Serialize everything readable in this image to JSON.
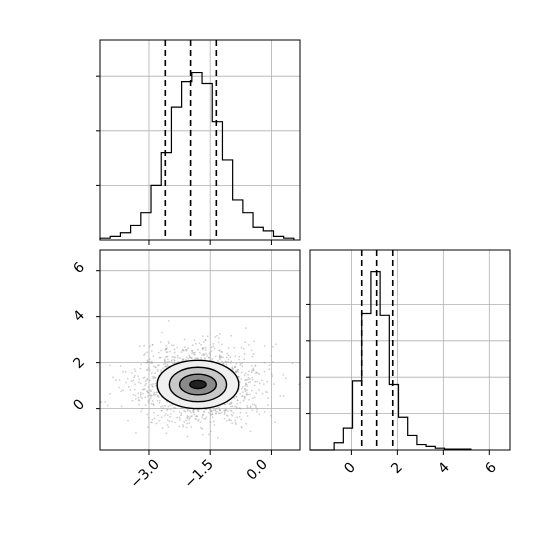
{
  "chart_data": {
    "type": "corner",
    "parameters": [
      "x",
      "y"
    ],
    "panels": [
      {
        "kind": "histogram",
        "parameter": "x",
        "x_range": [
          -4.2,
          0.7
        ],
        "y_range": [
          0,
          1.0
        ],
        "x_ticks": [
          -3.0,
          -1.5,
          0.0
        ],
        "bins": [
          {
            "lo": -4.2,
            "hi": -3.95,
            "count": 0.01
          },
          {
            "lo": -3.95,
            "hi": -3.7,
            "count": 0.02
          },
          {
            "lo": -3.7,
            "hi": -3.45,
            "count": 0.04
          },
          {
            "lo": -3.45,
            "hi": -3.2,
            "count": 0.08
          },
          {
            "lo": -3.2,
            "hi": -2.95,
            "count": 0.15
          },
          {
            "lo": -2.95,
            "hi": -2.7,
            "count": 0.3
          },
          {
            "lo": -2.7,
            "hi": -2.45,
            "count": 0.48
          },
          {
            "lo": -2.45,
            "hi": -2.2,
            "count": 0.73
          },
          {
            "lo": -2.2,
            "hi": -1.95,
            "count": 0.87
          },
          {
            "lo": -1.95,
            "hi": -1.7,
            "count": 0.92
          },
          {
            "lo": -1.7,
            "hi": -1.45,
            "count": 0.86
          },
          {
            "lo": -1.45,
            "hi": -1.2,
            "count": 0.65
          },
          {
            "lo": -1.2,
            "hi": -0.95,
            "count": 0.44
          },
          {
            "lo": -0.95,
            "hi": -0.7,
            "count": 0.22
          },
          {
            "lo": -0.7,
            "hi": -0.45,
            "count": 0.15
          },
          {
            "lo": -0.45,
            "hi": -0.2,
            "count": 0.07
          },
          {
            "lo": -0.2,
            "hi": 0.05,
            "count": 0.05
          },
          {
            "lo": 0.05,
            "hi": 0.3,
            "count": 0.02
          },
          {
            "lo": 0.3,
            "hi": 0.55,
            "count": 0.01
          }
        ],
        "quantiles": [
          -2.6,
          -1.98,
          -1.35
        ]
      },
      {
        "kind": "histogram",
        "parameter": "y",
        "x_range": [
          -1.8,
          6.9
        ],
        "y_range": [
          0,
          1.0
        ],
        "x_ticks": [
          0,
          2,
          4,
          6
        ],
        "bins": [
          {
            "lo": -1.8,
            "hi": -0.75,
            "count": 0.0
          },
          {
            "lo": -0.75,
            "hi": -0.35,
            "count": 0.04
          },
          {
            "lo": -0.35,
            "hi": 0.05,
            "count": 0.12
          },
          {
            "lo": 0.05,
            "hi": 0.45,
            "count": 0.38
          },
          {
            "lo": 0.45,
            "hi": 0.85,
            "count": 0.75
          },
          {
            "lo": 0.85,
            "hi": 1.25,
            "count": 0.98
          },
          {
            "lo": 1.25,
            "hi": 1.65,
            "count": 0.74
          },
          {
            "lo": 1.65,
            "hi": 2.05,
            "count": 0.36
          },
          {
            "lo": 2.05,
            "hi": 2.45,
            "count": 0.18
          },
          {
            "lo": 2.45,
            "hi": 2.85,
            "count": 0.08
          },
          {
            "lo": 2.85,
            "hi": 3.25,
            "count": 0.03
          },
          {
            "lo": 3.25,
            "hi": 3.65,
            "count": 0.02
          },
          {
            "lo": 3.65,
            "hi": 4.05,
            "count": 0.01
          },
          {
            "lo": 4.05,
            "hi": 5.2,
            "count": 0.005
          }
        ],
        "quantiles": [
          0.45,
          1.1,
          1.8
        ]
      },
      {
        "kind": "2d-density",
        "x_parameter": "x",
        "y_parameter": "y",
        "x_range": [
          -4.2,
          0.7
        ],
        "y_range": [
          -1.8,
          6.9
        ],
        "x_ticks": [
          -3.0,
          -1.5,
          0.0
        ],
        "y_ticks": [
          0,
          2,
          4,
          6
        ],
        "peak": {
          "x": -1.8,
          "y": 1.05
        },
        "contours": [
          {
            "level": "outer",
            "x_radius": 1.0,
            "y_radius": 1.05,
            "fill": "#f0f0f0"
          },
          {
            "level": "middle",
            "x_radius": 0.7,
            "y_radius": 0.75,
            "fill": "#c8c8c8"
          },
          {
            "level": "inner",
            "x_radius": 0.45,
            "y_radius": 0.45,
            "fill": "#8a8a8a"
          },
          {
            "level": "core",
            "x_radius": 0.2,
            "y_radius": 0.18,
            "fill": "#222222"
          }
        ]
      }
    ]
  },
  "labels": {
    "x_ticks": [
      "−3.0",
      "−1.5",
      "0.0"
    ],
    "y_ticks_2d": [
      "0",
      "2",
      "4",
      "6"
    ],
    "x_ticks_hist_y": [
      "0",
      "2",
      "4",
      "6"
    ]
  }
}
